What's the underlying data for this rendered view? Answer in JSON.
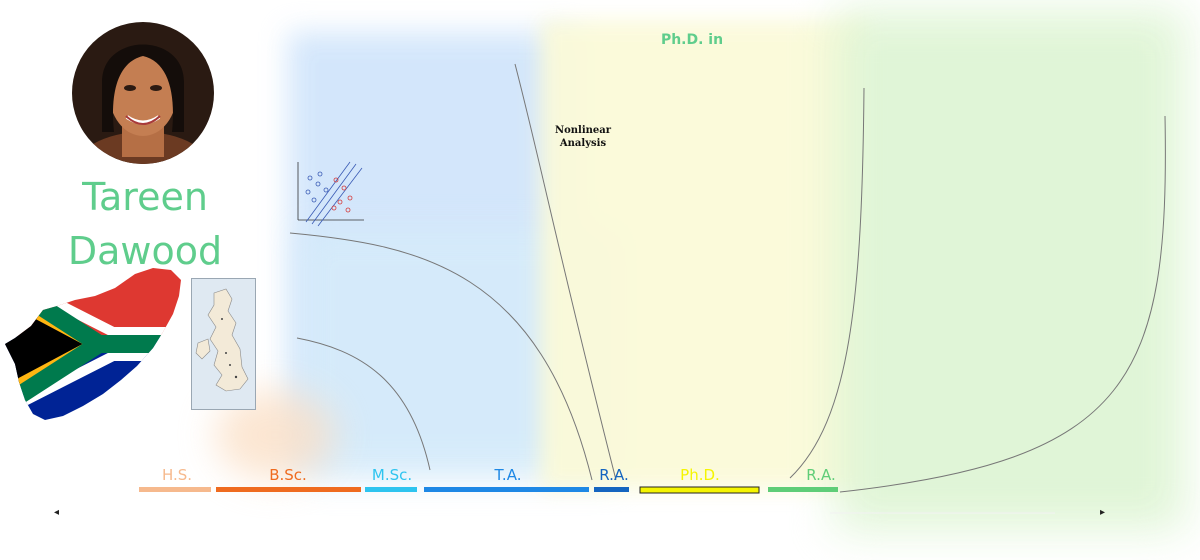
{
  "person": {
    "first_name": "Tareen",
    "last_name": "Dawood"
  },
  "flags": {
    "country_icon": "south-africa-flag-map-icon",
    "uk_map_icon": "uk-map-icon"
  },
  "phd_panel": {
    "title": "Ph.D. in",
    "topic_line1": "Nonlinear",
    "topic_line2": "Analysis"
  },
  "timeline": {
    "phases": [
      {
        "id": "hs",
        "label": "H.S.",
        "color": "#f6b98d"
      },
      {
        "id": "bsc",
        "label": "B.Sc.",
        "color": "#ef6b1f"
      },
      {
        "id": "msc",
        "label": "M.Sc.",
        "color": "#2ec4ef"
      },
      {
        "id": "ta",
        "label": "T.A.",
        "color": "#1e88e5"
      },
      {
        "id": "ra1",
        "label": "R.A.",
        "color": "#1565c0"
      },
      {
        "id": "phd",
        "label": "Ph.D.",
        "color": "#f5f500"
      },
      {
        "id": "ra2",
        "label": "R.A.",
        "color": "#5fcd78"
      }
    ],
    "left_arrow": "◂",
    "right_arrow": "▸"
  },
  "colors": {
    "name_green": "#5fcd8c",
    "phd_yellow": "#fbfad9",
    "ra_green": "#dff5d5",
    "msc_blue": "#cfe4fb"
  }
}
